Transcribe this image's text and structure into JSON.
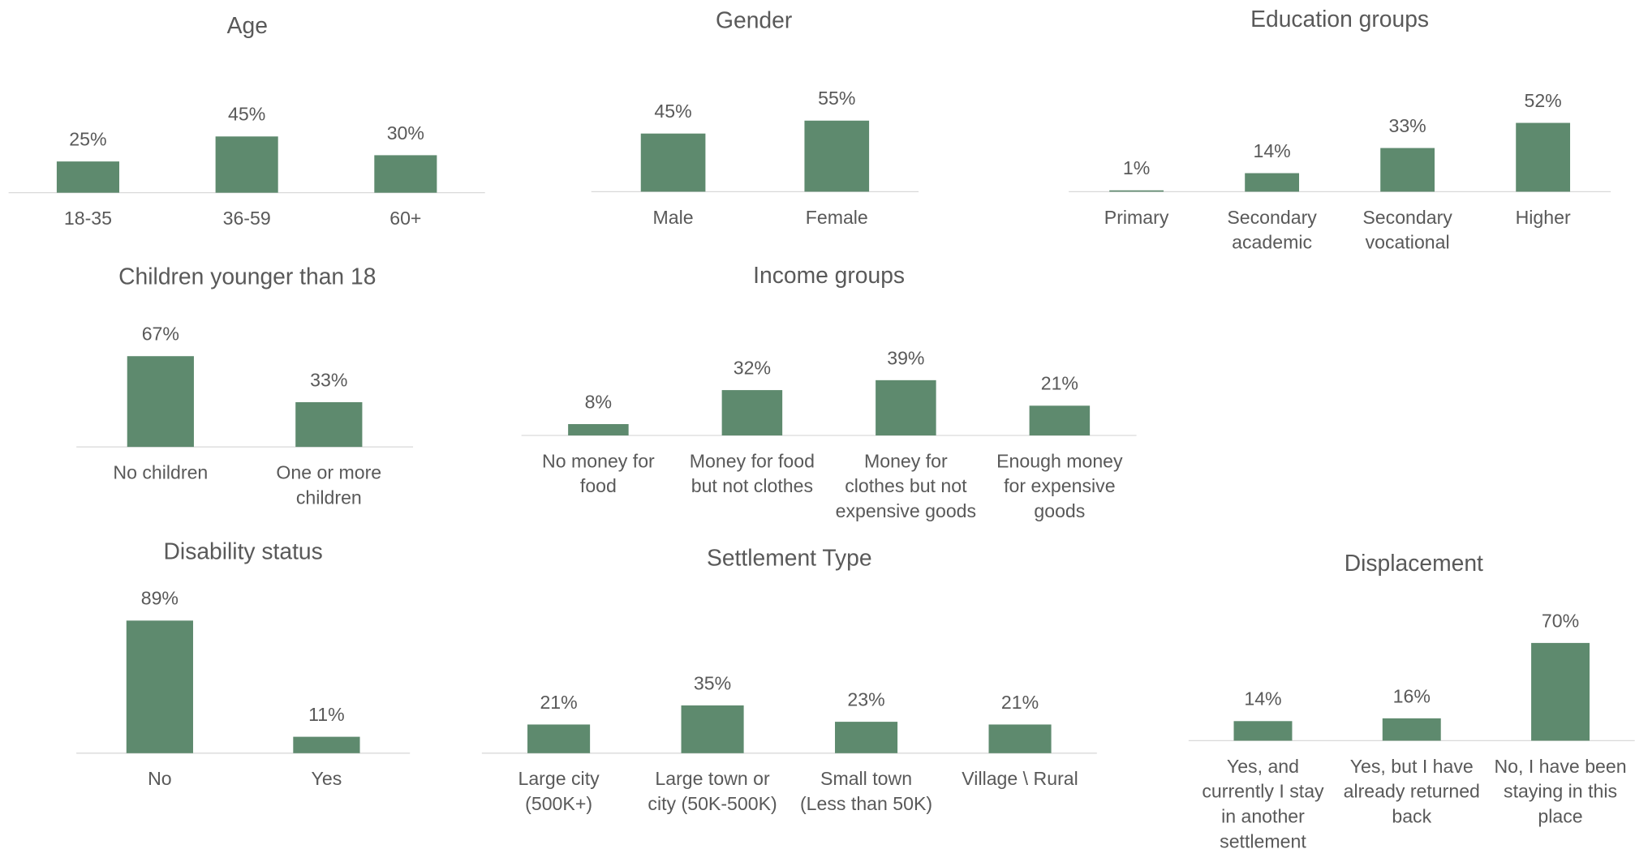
{
  "chart_data": [
    {
      "type": "bar",
      "title": "Age",
      "categories": [
        "18-35",
        "36-59",
        "60+"
      ],
      "values": [
        25,
        45,
        30
      ],
      "value_labels": [
        "25%",
        "45%",
        "30%"
      ],
      "color": "#5e8a6e"
    },
    {
      "type": "bar",
      "title": "Gender",
      "categories": [
        "Male",
        "Female"
      ],
      "values": [
        45,
        55
      ],
      "value_labels": [
        "45%",
        "55%"
      ],
      "color": "#5e8a6e"
    },
    {
      "type": "bar",
      "title": "Education groups",
      "categories": [
        "Primary",
        "Secondary academic",
        "Secondary vocational",
        "Higher"
      ],
      "values": [
        1,
        14,
        33,
        52
      ],
      "value_labels": [
        "1%",
        "14%",
        "33%",
        "52%"
      ],
      "color": "#5e8a6e"
    },
    {
      "type": "bar",
      "title": "Children younger than 18",
      "categories": [
        "No children",
        "One or more children"
      ],
      "values": [
        67,
        33
      ],
      "value_labels": [
        "67%",
        "33%"
      ],
      "color": "#5e8a6e"
    },
    {
      "type": "bar",
      "title": "Income groups",
      "categories": [
        "No money for food",
        "Money for food but not clothes",
        "Money for clothes but not expensive goods",
        "Enough money for expensive goods"
      ],
      "values": [
        8,
        32,
        39,
        21
      ],
      "value_labels": [
        "8%",
        "32%",
        "39%",
        "21%"
      ],
      "color": "#5e8a6e"
    },
    {
      "type": "bar",
      "title": "Disability status",
      "categories": [
        "No",
        "Yes"
      ],
      "values": [
        89,
        11
      ],
      "value_labels": [
        "89%",
        "11%"
      ],
      "color": "#5e8a6e"
    },
    {
      "type": "bar",
      "title": "Settlement Type",
      "categories": [
        "Large city (500K+)",
        "Large town or city (50K-500K)",
        "Small town (Less than 50K)",
        "Village \\ Rural"
      ],
      "values": [
        21,
        35,
        23,
        21
      ],
      "value_labels": [
        "21%",
        "35%",
        "23%",
        "21%"
      ],
      "color": "#5e8a6e"
    },
    {
      "type": "bar",
      "title": "Displacement",
      "categories": [
        "Yes, and currently I stay in another settlement",
        "Yes, but I have already returned back",
        "No, I have been staying in this place"
      ],
      "values": [
        14,
        16,
        70
      ],
      "value_labels": [
        "14%",
        "16%",
        "70%"
      ],
      "color": "#5e8a6e"
    }
  ]
}
